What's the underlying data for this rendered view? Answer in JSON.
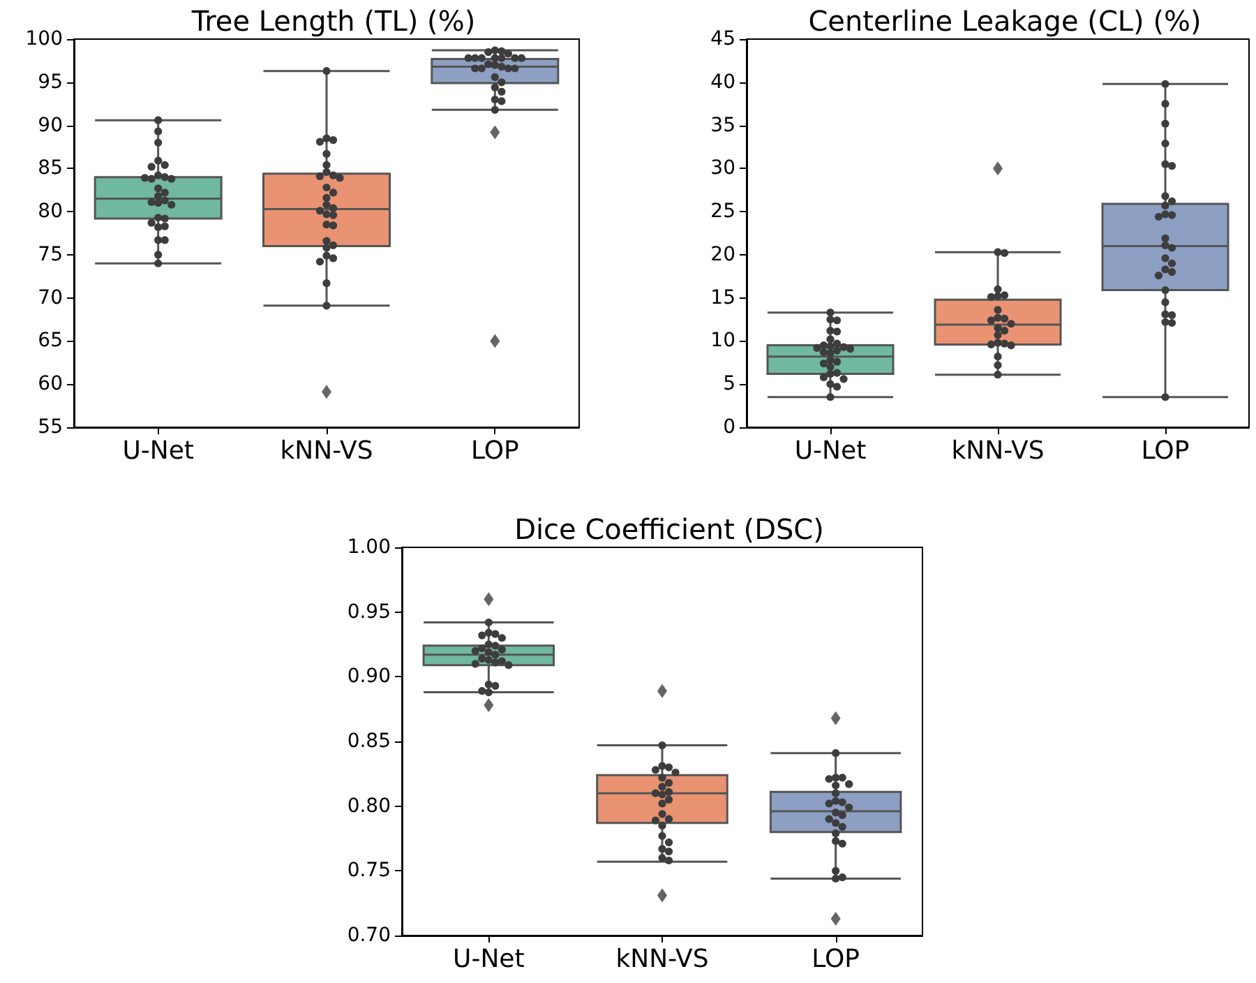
{
  "chart_data": [
    {
      "type": "box",
      "title": "Tree Length (TL) (%)",
      "categories": [
        "U-Net",
        "kNN-VS",
        "LOP"
      ],
      "colors": [
        "#70b8a0",
        "#e99373",
        "#8e9fc4"
      ],
      "ylim": [
        55,
        100
      ],
      "yticks": [
        55,
        60,
        65,
        70,
        75,
        80,
        85,
        90,
        95,
        100
      ],
      "grid": false,
      "boxes": [
        {
          "low": 74,
          "q1": 79.2,
          "median": 81.5,
          "q3": 84.0,
          "high": 90.6
        },
        {
          "low": 69.1,
          "q1": 76.0,
          "median": 80.3,
          "q3": 84.4,
          "high": 96.3,
          "outliers": [
            59.1
          ]
        },
        {
          "low": 91.8,
          "q1": 94.9,
          "median": 96.8,
          "q3": 97.7,
          "high": 98.7,
          "outliers": [
            89.2,
            65
          ]
        }
      ],
      "series": [
        {
          "type": "scatter",
          "color": "#3d3d3d",
          "x": [
            "U-Net",
            "U-Net",
            "U-Net",
            "U-Net",
            "U-Net",
            "U-Net",
            "U-Net",
            "U-Net",
            "U-Net",
            "U-Net",
            "U-Net",
            "U-Net",
            "U-Net",
            "U-Net",
            "U-Net",
            "U-Net",
            "U-Net",
            "U-Net",
            "U-Net",
            "U-Net",
            "U-Net",
            "U-Net",
            "U-Net",
            "U-Net",
            "U-Net",
            "U-Net",
            "U-Net"
          ],
          "values": [
            90.6,
            89.3,
            88,
            85.9,
            85.4,
            85.2,
            84.2,
            84,
            83.8,
            83.8,
            83.9,
            82.7,
            82.2,
            81.8,
            81.3,
            81.1,
            81,
            80.8,
            79.3,
            79.2,
            78.7,
            78.2,
            78.3,
            76.7,
            76.7,
            75,
            74
          ]
        },
        {
          "type": "scatter",
          "color": "#3d3d3d",
          "x": [
            "kNN-VS",
            "kNN-VS",
            "kNN-VS",
            "kNN-VS",
            "kNN-VS",
            "kNN-VS",
            "kNN-VS",
            "kNN-VS",
            "kNN-VS",
            "kNN-VS",
            "kNN-VS",
            "kNN-VS",
            "kNN-VS",
            "kNN-VS",
            "kNN-VS",
            "kNN-VS",
            "kNN-VS",
            "kNN-VS",
            "kNN-VS",
            "kNN-VS",
            "kNN-VS",
            "kNN-VS",
            "kNN-VS",
            "kNN-VS",
            "kNN-VS",
            "kNN-VS",
            "kNN-VS",
            "kNN-VS"
          ],
          "values": [
            96.3,
            88.5,
            88.3,
            88.1,
            86.7,
            85.4,
            84.6,
            84.2,
            84.1,
            83.9,
            82.8,
            82.2,
            81.6,
            80.8,
            80.4,
            80.1,
            79.7,
            79.6,
            78.5,
            78.4,
            76.6,
            76.1,
            75.8,
            74.9,
            74.6,
            74.2,
            71.7,
            69.1
          ]
        },
        {
          "type": "scatter",
          "color": "#3d3d3d",
          "x": [
            "LOP",
            "LOP",
            "LOP",
            "LOP",
            "LOP",
            "LOP",
            "LOP",
            "LOP",
            "LOP",
            "LOP",
            "LOP",
            "LOP",
            "LOP",
            "LOP",
            "LOP",
            "LOP",
            "LOP",
            "LOP",
            "LOP",
            "LOP",
            "LOP",
            "LOP",
            "LOP",
            "LOP",
            "LOP"
          ],
          "values": [
            98.7,
            98.6,
            98.5,
            98.3,
            97.8,
            97.8,
            97.8,
            97.8,
            97.8,
            97.8,
            97.8,
            97.1,
            97,
            96.8,
            96.6,
            96.6,
            96.6,
            96.6,
            95.6,
            95,
            94.4,
            93.9,
            93,
            92.8,
            91.8
          ]
        }
      ]
    },
    {
      "type": "box",
      "title": "Centerline Leakage (CL) (%)",
      "categories": [
        "U-Net",
        "kNN-VS",
        "LOP"
      ],
      "colors": [
        "#70b8a0",
        "#e99373",
        "#8e9fc4"
      ],
      "ylim": [
        0,
        45
      ],
      "yticks": [
        0,
        5,
        10,
        15,
        20,
        25,
        30,
        35,
        40,
        45
      ],
      "grid": false,
      "boxes": [
        {
          "low": 3.5,
          "q1": 6.2,
          "median": 8.2,
          "q3": 9.5,
          "high": 13.3
        },
        {
          "low": 6.1,
          "q1": 9.6,
          "median": 11.9,
          "q3": 14.8,
          "high": 20.3,
          "outliers": [
            30
          ]
        },
        {
          "low": 3.5,
          "q1": 15.9,
          "median": 21.0,
          "q3": 25.9,
          "high": 39.8
        }
      ],
      "series": [
        {
          "type": "scatter",
          "color": "#3d3d3d",
          "x": [
            "U-Net",
            "U-Net",
            "U-Net",
            "U-Net",
            "U-Net",
            "U-Net",
            "U-Net",
            "U-Net",
            "U-Net",
            "U-Net",
            "U-Net",
            "U-Net",
            "U-Net",
            "U-Net",
            "U-Net",
            "U-Net",
            "U-Net",
            "U-Net",
            "U-Net",
            "U-Net",
            "U-Net",
            "U-Net",
            "U-Net",
            "U-Net",
            "U-Net",
            "U-Net"
          ],
          "values": [
            13.3,
            12.5,
            12.4,
            11.2,
            11.1,
            10.2,
            9.7,
            9.5,
            9.4,
            9.3,
            9.2,
            9.1,
            8.9,
            8.7,
            8.6,
            7.8,
            7.6,
            7.4,
            7.0,
            6.3,
            6.2,
            5.8,
            5.6,
            5.0,
            4.7,
            3.5
          ]
        },
        {
          "type": "scatter",
          "color": "#3d3d3d",
          "x": [
            "kNN-VS",
            "kNN-VS",
            "kNN-VS",
            "kNN-VS",
            "kNN-VS",
            "kNN-VS",
            "kNN-VS",
            "kNN-VS",
            "kNN-VS",
            "kNN-VS",
            "kNN-VS",
            "kNN-VS",
            "kNN-VS",
            "kNN-VS",
            "kNN-VS",
            "kNN-VS",
            "kNN-VS",
            "kNN-VS",
            "kNN-VS",
            "kNN-VS",
            "kNN-VS"
          ],
          "values": [
            20.3,
            20.2,
            16.0,
            15.3,
            15.2,
            15.1,
            13.6,
            12.7,
            12.6,
            12.4,
            12.0,
            11.5,
            11.2,
            10.7,
            9.8,
            9.7,
            9.6,
            9.5,
            8.2,
            7.2,
            6.1
          ]
        },
        {
          "type": "scatter",
          "color": "#3d3d3d",
          "x": [
            "LOP",
            "LOP",
            "LOP",
            "LOP",
            "LOP",
            "LOP",
            "LOP",
            "LOP",
            "LOP",
            "LOP",
            "LOP",
            "LOP",
            "LOP",
            "LOP",
            "LOP",
            "LOP",
            "LOP",
            "LOP",
            "LOP",
            "LOP",
            "LOP",
            "LOP",
            "LOP",
            "LOP",
            "LOP",
            "LOP",
            "LOP"
          ],
          "values": [
            39.8,
            37.5,
            35.2,
            32.9,
            30.5,
            30.3,
            26.8,
            26.2,
            25.7,
            24.7,
            24.6,
            24.4,
            21.9,
            21.1,
            20.8,
            19.6,
            19.0,
            18.3,
            18.0,
            17.6,
            15.9,
            14.5,
            13.1,
            13.0,
            12.2,
            12.1,
            3.5
          ]
        }
      ]
    },
    {
      "type": "box",
      "title": "Dice Coefficient (DSC)",
      "categories": [
        "U-Net",
        "kNN-VS",
        "LOP"
      ],
      "colors": [
        "#70b8a0",
        "#e99373",
        "#8e9fc4"
      ],
      "ylim": [
        0.7,
        1.0
      ],
      "yticks": [
        {
          "value": 0.7,
          "label": "0.70"
        },
        {
          "value": 0.75,
          "label": "0.75"
        },
        {
          "value": 0.8,
          "label": "0.80"
        },
        {
          "value": 0.85,
          "label": "0.85"
        },
        {
          "value": 0.9,
          "label": "0.90"
        },
        {
          "value": 0.95,
          "label": "0.95"
        },
        {
          "value": 1.0,
          "label": "1.00"
        }
      ],
      "grid": false,
      "boxes": [
        {
          "low": 0.888,
          "q1": 0.909,
          "median": 0.917,
          "q3": 0.924,
          "high": 0.942,
          "outliers": [
            0.96,
            0.878
          ]
        },
        {
          "low": 0.757,
          "q1": 0.787,
          "median": 0.81,
          "q3": 0.824,
          "high": 0.847,
          "outliers": [
            0.889,
            0.731
          ]
        },
        {
          "low": 0.744,
          "q1": 0.78,
          "median": 0.796,
          "q3": 0.811,
          "high": 0.841,
          "outliers": [
            0.868,
            0.713
          ]
        }
      ],
      "series": [
        {
          "type": "scatter",
          "color": "#3d3d3d",
          "x": [
            "U-Net",
            "U-Net",
            "U-Net",
            "U-Net",
            "U-Net",
            "U-Net",
            "U-Net",
            "U-Net",
            "U-Net",
            "U-Net",
            "U-Net",
            "U-Net",
            "U-Net",
            "U-Net",
            "U-Net",
            "U-Net",
            "U-Net",
            "U-Net",
            "U-Net",
            "U-Net",
            "U-Net",
            "U-Net"
          ],
          "values": [
            0.942,
            0.934,
            0.933,
            0.932,
            0.93,
            0.925,
            0.924,
            0.922,
            0.921,
            0.92,
            0.919,
            0.917,
            0.914,
            0.913,
            0.912,
            0.911,
            0.91,
            0.909,
            0.894,
            0.893,
            0.889,
            0.888
          ]
        },
        {
          "type": "scatter",
          "color": "#3d3d3d",
          "x": [
            "kNN-VS",
            "kNN-VS",
            "kNN-VS",
            "kNN-VS",
            "kNN-VS",
            "kNN-VS",
            "kNN-VS",
            "kNN-VS",
            "kNN-VS",
            "kNN-VS",
            "kNN-VS",
            "kNN-VS",
            "kNN-VS",
            "kNN-VS",
            "kNN-VS",
            "kNN-VS",
            "kNN-VS",
            "kNN-VS",
            "kNN-VS",
            "kNN-VS",
            "kNN-VS",
            "kNN-VS",
            "kNN-VS"
          ],
          "values": [
            0.847,
            0.831,
            0.83,
            0.828,
            0.826,
            0.822,
            0.818,
            0.815,
            0.811,
            0.81,
            0.809,
            0.805,
            0.802,
            0.794,
            0.79,
            0.789,
            0.785,
            0.777,
            0.772,
            0.767,
            0.765,
            0.76,
            0.758
          ]
        },
        {
          "type": "scatter",
          "color": "#3d3d3d",
          "x": [
            "LOP",
            "LOP",
            "LOP",
            "LOP",
            "LOP",
            "LOP",
            "LOP",
            "LOP",
            "LOP",
            "LOP",
            "LOP",
            "LOP",
            "LOP",
            "LOP",
            "LOP",
            "LOP",
            "LOP",
            "LOP",
            "LOP",
            "LOP",
            "LOP",
            "LOP"
          ],
          "values": [
            0.841,
            0.822,
            0.822,
            0.821,
            0.817,
            0.816,
            0.81,
            0.804,
            0.803,
            0.802,
            0.799,
            0.795,
            0.793,
            0.79,
            0.787,
            0.784,
            0.779,
            0.773,
            0.771,
            0.75,
            0.745,
            0.744
          ]
        }
      ]
    }
  ]
}
